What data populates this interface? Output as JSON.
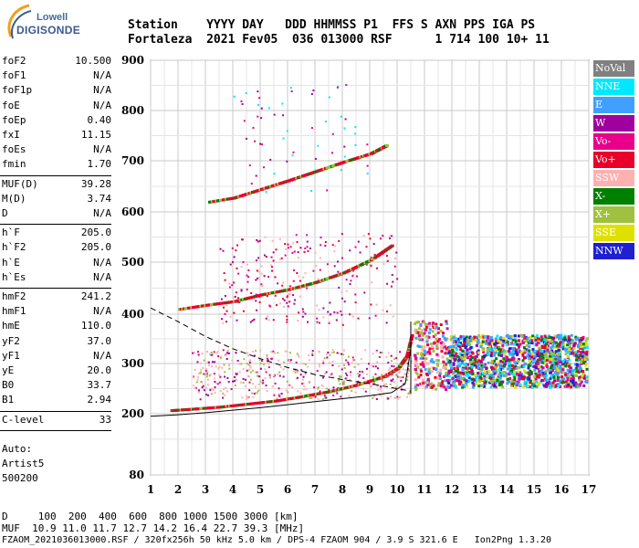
{
  "logo": {
    "top": "Lowell",
    "main": "DIGISONDE"
  },
  "header": {
    "line1": "Station    YYYY DAY   DDD HHMMSS P1  FFS S AXN PPS IGA PS",
    "line2": "Fortaleza  2021 Fev05  036 013000 RSF      1 714 100 10+ 11"
  },
  "params": [
    {
      "group": [
        {
          "k": "foF2",
          "v": "10.500"
        },
        {
          "k": "foF1",
          "v": "N/A"
        },
        {
          "k": "foF1p",
          "v": "N/A"
        },
        {
          "k": "foE",
          "v": "N/A"
        },
        {
          "k": "foEp",
          "v": "0.40"
        },
        {
          "k": "fxI",
          "v": "11.15"
        },
        {
          "k": "foEs",
          "v": "N/A"
        },
        {
          "k": "fmin",
          "v": "1.70"
        }
      ]
    },
    {
      "group": [
        {
          "k": "MUF(D)",
          "v": "39.28"
        },
        {
          "k": "M(D)",
          "v": "3.74"
        },
        {
          "k": "D",
          "v": "N/A"
        }
      ]
    },
    {
      "group": [
        {
          "k": "h`F",
          "v": "205.0"
        },
        {
          "k": "h`F2",
          "v": "205.0"
        },
        {
          "k": "h`E",
          "v": "N/A"
        },
        {
          "k": "h`Es",
          "v": "N/A"
        }
      ]
    },
    {
      "group": [
        {
          "k": "hmF2",
          "v": "241.2"
        },
        {
          "k": "hmF1",
          "v": "N/A"
        },
        {
          "k": "hmE",
          "v": "110.0"
        },
        {
          "k": "yF2",
          "v": "37.0"
        },
        {
          "k": "yF1",
          "v": "N/A"
        },
        {
          "k": "yE",
          "v": "20.0"
        },
        {
          "k": "B0",
          "v": "33.7"
        },
        {
          "k": "B1",
          "v": "2.94"
        }
      ]
    },
    {
      "group": [
        {
          "k": "C-level",
          "v": "33"
        }
      ]
    }
  ],
  "auto": [
    "Auto:",
    "Artist5",
    "500200"
  ],
  "legend": [
    {
      "label": "NoVal",
      "color": "#808080"
    },
    {
      "label": "NNE",
      "color": "#00e8ff"
    },
    {
      "label": "E",
      "color": "#40a0ff"
    },
    {
      "label": "W",
      "color": "#a000a0"
    },
    {
      "label": "Vo-",
      "color": "#e8008a"
    },
    {
      "label": "Vo+",
      "color": "#e8002a"
    },
    {
      "label": "SSW",
      "color": "#ffb0b0"
    },
    {
      "label": "X-",
      "color": "#008000"
    },
    {
      "label": "X+",
      "color": "#a0c040"
    },
    {
      "label": "SSE",
      "color": "#e0e000"
    },
    {
      "label": "NNW",
      "color": "#2020d0"
    }
  ],
  "footer": {
    "d_line": "D     100  200  400  600  800 1000 1500 3000 [km]",
    "muf_line": "MUF  10.9 11.0 11.7 12.7 14.2 16.4 22.7 39.3 [MHz]",
    "file_line": "FZAOM_2021036013000.RSF / 320fx256h 50 kHz 5.0 km / DPS-4 FZAOM 904 / 3.9 S 321.6 E   Ion2Png 1.3.20"
  },
  "chart_data": {
    "type": "scatter",
    "xlim": [
      1,
      17
    ],
    "ylim": [
      80,
      900
    ],
    "x_ticks": [
      "1",
      "2",
      "3",
      "4",
      "5",
      "6",
      "7",
      "8",
      "9",
      "10",
      "11",
      "12",
      "13",
      "14",
      "15",
      "16",
      "17"
    ],
    "y_ticks": [
      "80",
      "200",
      "300",
      "400",
      "500",
      "600",
      "700",
      "800",
      "900"
    ],
    "y_tick_values": [
      80,
      200,
      300,
      400,
      500,
      600,
      700,
      800,
      900
    ],
    "traces": [
      {
        "name": "o-trace",
        "color": "#e8002a",
        "x": [
          1.7,
          2.5,
          3.5,
          4.5,
          5.5,
          6.5,
          7.5,
          8.5,
          9.5,
          10.0,
          10.3,
          10.5
        ],
        "y": [
          207,
          210,
          214,
          220,
          226,
          235,
          245,
          258,
          275,
          292,
          315,
          360
        ]
      },
      {
        "name": "2nd hop",
        "color": "#e8002a",
        "x": [
          2.0,
          3.0,
          4.0,
          5.0,
          6.0,
          7.0,
          8.0,
          9.0,
          9.8
        ],
        "y": [
          410,
          418,
          425,
          438,
          448,
          462,
          480,
          505,
          535
        ]
      },
      {
        "name": "3rd hop",
        "color": "#e8002a",
        "x": [
          3.1,
          4.0,
          5.0,
          6.0,
          7.0,
          8.0,
          9.0,
          9.6
        ],
        "y": [
          620,
          628,
          645,
          662,
          680,
          698,
          715,
          732
        ]
      }
    ],
    "profile": {
      "x": [
        1.0,
        2.0,
        3.0,
        4.0,
        5.0,
        6.0,
        7.0,
        8.0,
        9.0,
        9.8,
        10.3,
        10.5
      ],
      "y": [
        195,
        198,
        202,
        207,
        212,
        218,
        224,
        230,
        236,
        242,
        260,
        330
      ]
    },
    "model_curve": {
      "x": [
        1.0,
        2.0,
        3.0,
        4.0,
        5.0,
        6.0,
        7.0,
        8.0,
        9.0,
        10.0,
        10.5
      ],
      "y": [
        412,
        385,
        355,
        330,
        310,
        292,
        278,
        268,
        260,
        250,
        245
      ]
    }
  }
}
